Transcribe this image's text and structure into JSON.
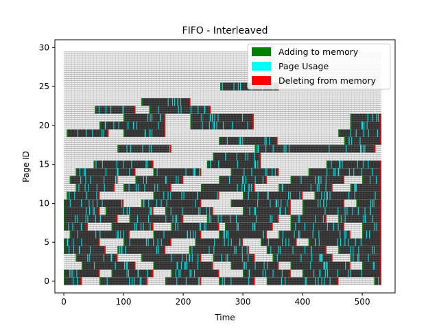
{
  "chart_data": {
    "type": "bar",
    "title": "FIFO - Interleaved",
    "xlabel": "Time",
    "ylabel": "Page ID",
    "xlim": [
      -15,
      555
    ],
    "ylim": [
      -1.5,
      31
    ],
    "xticks": [
      0,
      100,
      200,
      300,
      400,
      500
    ],
    "yticks": [
      0,
      5,
      10,
      15,
      20,
      25,
      30
    ],
    "grid": false,
    "legend_position": "top-right",
    "time_range": [
      0,
      532
    ],
    "page_ids": [
      0,
      29
    ],
    "legend": [
      {
        "label": "Adding to memory",
        "color": "#008000"
      },
      {
        "label": "Page Usage",
        "color": "#00FFFF"
      },
      {
        "label": "Deleting from memory",
        "color": "#FF0000"
      }
    ],
    "resident_intervals": [
      {
        "page": 29,
        "spans": []
      },
      {
        "page": 28,
        "spans": []
      },
      {
        "page": 27,
        "spans": []
      },
      {
        "page": 26,
        "spans": []
      },
      {
        "page": 25,
        "spans": [
          [
            262,
            360
          ]
        ]
      },
      {
        "page": 24,
        "spans": []
      },
      {
        "page": 23,
        "spans": [
          [
            130,
            212
          ]
        ]
      },
      {
        "page": 22,
        "spans": [
          [
            52,
            120
          ],
          [
            143,
            246
          ]
        ]
      },
      {
        "page": 21,
        "spans": [
          [
            100,
            170
          ],
          [
            212,
            318
          ],
          [
            480,
            532
          ]
        ]
      },
      {
        "page": 20,
        "spans": [
          [
            60,
            170
          ],
          [
            212,
            318
          ],
          [
            480,
            532
          ]
        ]
      },
      {
        "page": 19,
        "spans": [
          [
            5,
            75
          ],
          [
            100,
            170
          ],
          [
            460,
            532
          ]
        ]
      },
      {
        "page": 18,
        "spans": [
          [
            260,
            358
          ],
          [
            470,
            532
          ]
        ]
      },
      {
        "page": 17,
        "spans": [
          [
            90,
            180
          ],
          [
            320,
            522
          ]
        ]
      },
      {
        "page": 16,
        "spans": [
          [
            250,
            330
          ]
        ]
      },
      {
        "page": 15,
        "spans": [
          [
            50,
            150
          ],
          [
            240,
            330
          ],
          [
            440,
            532
          ]
        ]
      },
      {
        "page": 14,
        "spans": [
          [
            20,
            120
          ],
          [
            150,
            230
          ],
          [
            280,
            360
          ],
          [
            410,
            532
          ]
        ]
      },
      {
        "page": 13,
        "spans": [
          [
            10,
            90
          ],
          [
            120,
            200
          ],
          [
            260,
            340
          ],
          [
            380,
            470
          ],
          [
            500,
            532
          ]
        ]
      },
      {
        "page": 12,
        "spans": [
          [
            20,
            85
          ],
          [
            100,
            180
          ],
          [
            230,
            320
          ],
          [
            360,
            450
          ],
          [
            480,
            532
          ]
        ]
      },
      {
        "page": 11,
        "spans": [
          [
            5,
            60
          ],
          [
            150,
            260
          ],
          [
            300,
            400
          ],
          [
            420,
            532
          ]
        ]
      },
      {
        "page": 10,
        "spans": [
          [
            0,
            100
          ],
          [
            130,
            230
          ],
          [
            280,
            380
          ],
          [
            400,
            470
          ],
          [
            490,
            532
          ]
        ]
      },
      {
        "page": 9,
        "spans": [
          [
            0,
            60
          ],
          [
            70,
            150
          ],
          [
            170,
            250
          ],
          [
            300,
            380
          ],
          [
            400,
            532
          ]
        ]
      },
      {
        "page": 8,
        "spans": [
          [
            0,
            90
          ],
          [
            110,
            200
          ],
          [
            240,
            360
          ],
          [
            380,
            440
          ],
          [
            460,
            532
          ]
        ]
      },
      {
        "page": 7,
        "spans": [
          [
            0,
            40
          ],
          [
            80,
            150
          ],
          [
            180,
            260
          ],
          [
            270,
            350
          ],
          [
            380,
            470
          ],
          [
            500,
            532
          ]
        ]
      },
      {
        "page": 6,
        "spans": [
          [
            10,
            110
          ],
          [
            150,
            230
          ],
          [
            260,
            340
          ],
          [
            360,
            480
          ],
          [
            500,
            532
          ]
        ]
      },
      {
        "page": 5,
        "spans": [
          [
            0,
            60
          ],
          [
            100,
            180
          ],
          [
            220,
            300
          ],
          [
            330,
            390
          ],
          [
            410,
            532
          ]
        ]
      },
      {
        "page": 4,
        "spans": [
          [
            0,
            70
          ],
          [
            90,
            170
          ],
          [
            210,
            310
          ],
          [
            340,
            440
          ],
          [
            460,
            532
          ]
        ]
      },
      {
        "page": 3,
        "spans": [
          [
            20,
            90
          ],
          [
            130,
            230
          ],
          [
            250,
            320
          ],
          [
            350,
            450
          ],
          [
            480,
            532
          ]
        ]
      },
      {
        "page": 2,
        "spans": [
          [
            30,
            120
          ],
          [
            150,
            250
          ],
          [
            280,
            360
          ],
          [
            380,
            480
          ],
          [
            500,
            532
          ]
        ]
      },
      {
        "page": 1,
        "spans": [
          [
            0,
            60
          ],
          [
            80,
            150
          ],
          [
            180,
            260
          ],
          [
            300,
            380
          ],
          [
            400,
            532
          ]
        ]
      },
      {
        "page": 0,
        "spans": [
          [
            0,
            30
          ],
          [
            60,
            140
          ],
          [
            170,
            230
          ],
          [
            260,
            320
          ],
          [
            340,
            460
          ],
          [
            520,
            532
          ]
        ]
      }
    ]
  }
}
